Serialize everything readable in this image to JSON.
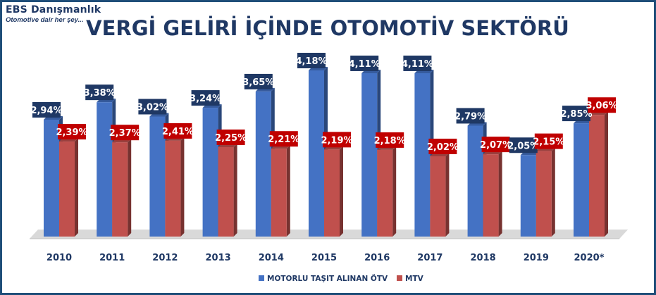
{
  "logo": {
    "name": "EBS Danışmanlık",
    "tagline": "Otomotive dair her şey..."
  },
  "chart_data": {
    "type": "bar",
    "title": "VERGİ GELİRİ İÇİNDE OTOMOTİV SEKTÖRÜ",
    "categories": [
      "2010",
      "2011",
      "2012",
      "2013",
      "2014",
      "2015",
      "2016",
      "2017",
      "2018",
      "2019",
      "2020*"
    ],
    "series": [
      {
        "name": "MOTORLU TAŞIT ALINAN ÖTV",
        "values": [
          2.94,
          3.38,
          3.02,
          3.24,
          3.65,
          4.18,
          4.11,
          4.11,
          2.79,
          2.05,
          2.85
        ],
        "labels": [
          "2,94%",
          "3,38%",
          "3,02%",
          "3,24%",
          "3,65%",
          "4,18%",
          "4,11%",
          "4,11%",
          "2,79%",
          "2,05%",
          "2,85%"
        ],
        "color": "#4472c4",
        "label_bg": "#1f3864"
      },
      {
        "name": "MTV",
        "values": [
          2.39,
          2.37,
          2.41,
          2.25,
          2.21,
          2.19,
          2.18,
          2.02,
          2.07,
          2.15,
          3.06
        ],
        "labels": [
          "2,39%",
          "2,37%",
          "2,41%",
          "2,25%",
          "2,21%",
          "2,19%",
          "2,18%",
          "2,02%",
          "2,07%",
          "2,15%",
          "3,06%"
        ],
        "color": "#c0504d",
        "label_bg": "#c00000"
      }
    ],
    "ylim": [
      0,
      4.5
    ],
    "grid": false,
    "legend_position": "bottom"
  }
}
